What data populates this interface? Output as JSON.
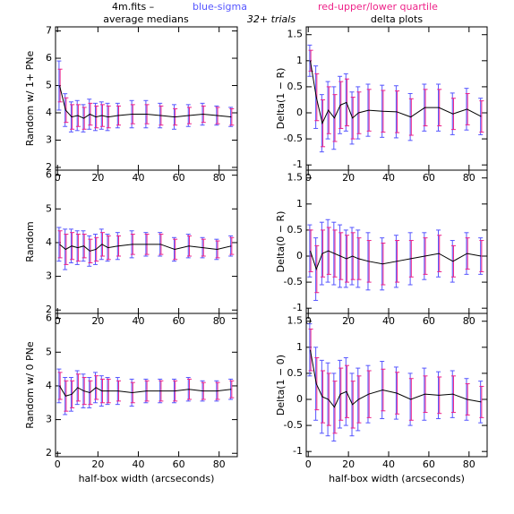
{
  "header": {
    "file": "4m.fits  –",
    "sigma_note": "blue-sigma",
    "quartile_note": "red-upper/lower quartile",
    "trials": "32+ trials",
    "left_title": "average medians",
    "right_title": "delta plots"
  },
  "chart_data": [
    {
      "type": "errorline",
      "ylabel": "Random w/ 1+ PNe",
      "color": "#000000",
      "sigma_color": "#5555ff",
      "quartile_color": "#ee2288",
      "x": [
        1,
        4,
        7,
        10,
        13,
        16,
        19,
        22,
        25,
        30,
        37,
        44,
        51,
        58,
        65,
        72,
        79,
        86
      ],
      "values": [
        5.0,
        4.1,
        3.85,
        3.9,
        3.8,
        3.95,
        3.85,
        3.9,
        3.85,
        3.9,
        3.95,
        3.95,
        3.9,
        3.85,
        3.9,
        3.95,
        3.9,
        3.85
      ],
      "sigma": [
        0.9,
        0.6,
        0.55,
        0.55,
        0.5,
        0.55,
        0.5,
        0.5,
        0.5,
        0.45,
        0.5,
        0.5,
        0.45,
        0.45,
        0.4,
        0.4,
        0.35,
        0.35
      ],
      "quartile": [
        0.6,
        0.45,
        0.45,
        0.4,
        0.4,
        0.4,
        0.4,
        0.4,
        0.4,
        0.35,
        0.35,
        0.35,
        0.35,
        0.3,
        0.3,
        0.3,
        0.3,
        0.3
      ],
      "xlim": [
        -1,
        89
      ],
      "ylim": [
        1.9,
        7.15
      ],
      "xticks": [
        0,
        20,
        40,
        60,
        80
      ],
      "yticks": [
        2,
        3,
        4,
        5,
        6,
        7
      ]
    },
    {
      "type": "errorline",
      "ylabel": "Delta(1 − R)",
      "color": "#000000",
      "sigma_color": "#5555ff",
      "quartile_color": "#ee2288",
      "x": [
        1,
        4,
        7,
        10,
        13,
        16,
        19,
        22,
        25,
        30,
        37,
        44,
        51,
        58,
        65,
        72,
        79,
        86
      ],
      "values": [
        1.0,
        0.3,
        -0.2,
        0.05,
        -0.1,
        0.15,
        0.2,
        -0.1,
        0.0,
        0.05,
        0.03,
        0.02,
        -0.08,
        0.1,
        0.1,
        -0.02,
        0.07,
        -0.07
      ],
      "sigma": [
        0.3,
        0.6,
        0.55,
        0.55,
        0.6,
        0.55,
        0.55,
        0.5,
        0.5,
        0.5,
        0.5,
        0.5,
        0.45,
        0.45,
        0.45,
        0.4,
        0.4,
        0.35
      ],
      "quartile": [
        0.2,
        0.45,
        0.45,
        0.45,
        0.45,
        0.45,
        0.45,
        0.4,
        0.4,
        0.4,
        0.4,
        0.4,
        0.35,
        0.35,
        0.35,
        0.3,
        0.3,
        0.3
      ],
      "xlim": [
        -1,
        89
      ],
      "ylim": [
        -1.1,
        1.65
      ],
      "xticks": [
        0,
        20,
        40,
        60,
        80
      ],
      "yticks": [
        -1,
        -0.5,
        0,
        0.5,
        1,
        1.5
      ]
    },
    {
      "type": "errorline",
      "ylabel": "Random",
      "color": "#000000",
      "sigma_color": "#5555ff",
      "quartile_color": "#ee2288",
      "x": [
        1,
        4,
        7,
        10,
        13,
        16,
        19,
        22,
        25,
        30,
        37,
        44,
        51,
        58,
        65,
        72,
        79,
        86
      ],
      "values": [
        3.95,
        3.8,
        3.9,
        3.85,
        3.9,
        3.75,
        3.8,
        3.95,
        3.85,
        3.9,
        3.95,
        3.95,
        3.95,
        3.8,
        3.9,
        3.85,
        3.8,
        3.9
      ],
      "sigma": [
        0.5,
        0.6,
        0.5,
        0.5,
        0.45,
        0.45,
        0.45,
        0.45,
        0.4,
        0.4,
        0.4,
        0.35,
        0.35,
        0.35,
        0.35,
        0.3,
        0.3,
        0.3
      ],
      "quartile": [
        0.4,
        0.45,
        0.4,
        0.4,
        0.35,
        0.35,
        0.35,
        0.35,
        0.35,
        0.3,
        0.3,
        0.3,
        0.3,
        0.3,
        0.3,
        0.25,
        0.25,
        0.25
      ],
      "xlim": [
        -1,
        89
      ],
      "ylim": [
        1.9,
        6.15
      ],
      "xticks": [
        0,
        20,
        40,
        60,
        80
      ],
      "yticks": [
        2,
        3,
        4,
        5,
        6
      ]
    },
    {
      "type": "errorline",
      "ylabel": "Delta(0 − R)",
      "color": "#000000",
      "sigma_color": "#5555ff",
      "quartile_color": "#ee2288",
      "x": [
        1,
        4,
        7,
        10,
        13,
        16,
        19,
        22,
        25,
        30,
        37,
        44,
        51,
        58,
        65,
        72,
        79,
        86
      ],
      "values": [
        0.1,
        -0.25,
        0.05,
        0.1,
        0.05,
        0.0,
        -0.05,
        0.0,
        -0.05,
        -0.1,
        -0.15,
        -0.1,
        -0.05,
        0.0,
        0.05,
        -0.1,
        0.05,
        0.0
      ],
      "sigma": [
        0.5,
        0.6,
        0.6,
        0.6,
        0.6,
        0.6,
        0.55,
        0.55,
        0.55,
        0.55,
        0.5,
        0.5,
        0.5,
        0.45,
        0.45,
        0.4,
        0.4,
        0.35
      ],
      "quartile": [
        0.4,
        0.45,
        0.45,
        0.45,
        0.45,
        0.45,
        0.45,
        0.45,
        0.4,
        0.4,
        0.4,
        0.4,
        0.35,
        0.35,
        0.35,
        0.3,
        0.3,
        0.3
      ],
      "xlim": [
        -1,
        89
      ],
      "ylim": [
        -1.1,
        1.65
      ],
      "xticks": [
        0,
        20,
        40,
        60,
        80
      ],
      "yticks": [
        -1,
        -0.5,
        0,
        0.5,
        1,
        1.5
      ]
    },
    {
      "type": "errorline",
      "ylabel": "Random w/ 0 PNe",
      "xlabel": "half-box width (arcseconds)",
      "color": "#000000",
      "sigma_color": "#5555ff",
      "quartile_color": "#ee2288",
      "x": [
        1,
        4,
        7,
        10,
        13,
        16,
        19,
        22,
        25,
        30,
        37,
        44,
        51,
        58,
        65,
        72,
        79,
        86
      ],
      "values": [
        4.0,
        3.7,
        3.75,
        3.95,
        3.85,
        3.8,
        3.95,
        3.85,
        3.85,
        3.85,
        3.8,
        3.85,
        3.85,
        3.85,
        3.9,
        3.85,
        3.85,
        3.9
      ],
      "sigma": [
        0.5,
        0.55,
        0.5,
        0.5,
        0.5,
        0.45,
        0.45,
        0.45,
        0.4,
        0.4,
        0.4,
        0.35,
        0.35,
        0.35,
        0.35,
        0.3,
        0.3,
        0.3
      ],
      "quartile": [
        0.4,
        0.45,
        0.4,
        0.4,
        0.4,
        0.35,
        0.35,
        0.35,
        0.35,
        0.3,
        0.3,
        0.3,
        0.3,
        0.3,
        0.3,
        0.25,
        0.25,
        0.25
      ],
      "xlim": [
        -1,
        89
      ],
      "ylim": [
        1.9,
        6.15
      ],
      "xticks": [
        0,
        20,
        40,
        60,
        80
      ],
      "yticks": [
        2,
        3,
        4,
        5,
        6
      ]
    },
    {
      "type": "errorline",
      "ylabel": "Delta(1 − 0)",
      "xlabel": "half-box width (arcseconds)",
      "color": "#000000",
      "sigma_color": "#5555ff",
      "quartile_color": "#ee2288",
      "x": [
        1,
        4,
        7,
        10,
        13,
        16,
        19,
        22,
        25,
        30,
        37,
        44,
        51,
        58,
        65,
        72,
        79,
        86
      ],
      "values": [
        0.95,
        0.3,
        0.05,
        0.0,
        -0.15,
        0.1,
        0.15,
        -0.1,
        0.0,
        0.1,
        0.18,
        0.12,
        0.0,
        0.1,
        0.08,
        0.1,
        0.0,
        -0.05
      ],
      "sigma": [
        0.5,
        0.7,
        0.7,
        0.7,
        0.65,
        0.65,
        0.65,
        0.6,
        0.6,
        0.55,
        0.55,
        0.5,
        0.5,
        0.5,
        0.45,
        0.45,
        0.4,
        0.4
      ],
      "quartile": [
        0.4,
        0.5,
        0.5,
        0.5,
        0.5,
        0.5,
        0.5,
        0.45,
        0.45,
        0.45,
        0.4,
        0.4,
        0.4,
        0.35,
        0.35,
        0.35,
        0.3,
        0.3
      ],
      "xlim": [
        -1,
        89
      ],
      "ylim": [
        -1.1,
        1.65
      ],
      "xticks": [
        0,
        20,
        40,
        60,
        80
      ],
      "yticks": [
        -1,
        -0.5,
        0,
        0.5,
        1,
        1.5
      ]
    }
  ]
}
